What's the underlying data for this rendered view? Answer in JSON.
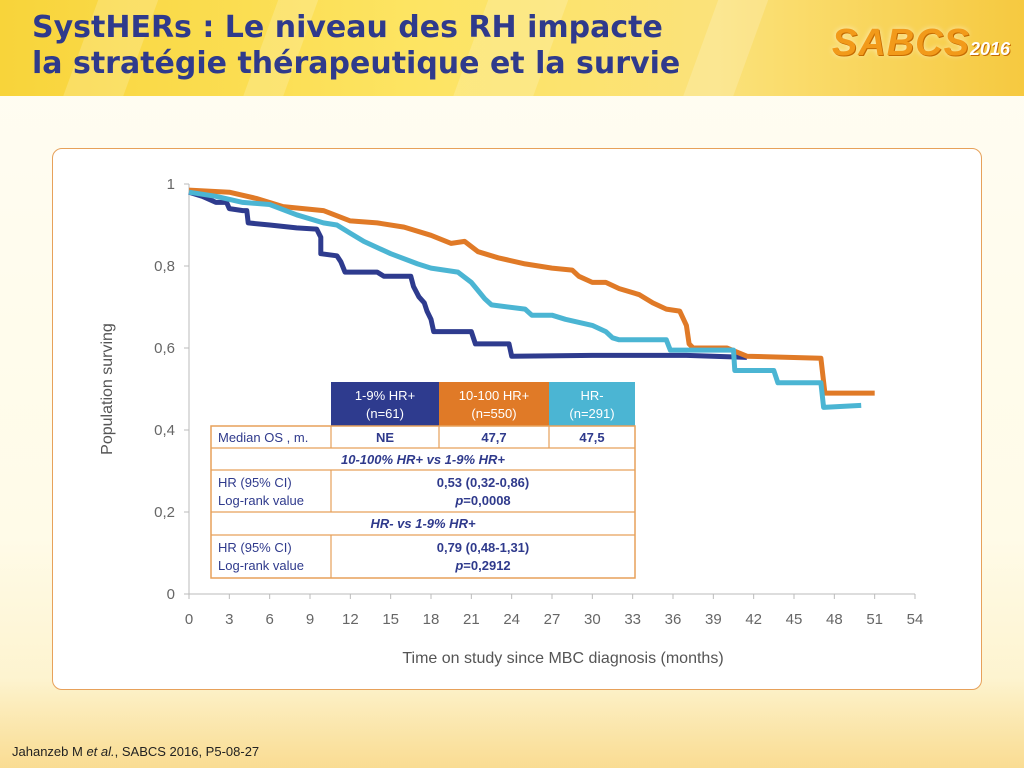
{
  "header": {
    "title_line1": "SystHERs : Le niveau des RH impacte",
    "title_line2": "la stratégie thérapeutique et la survie",
    "logo_text": "SABCS",
    "logo_year": "2016"
  },
  "citation": {
    "author": "Jahanzeb M ",
    "etal": "et al.",
    "rest": ", SABCS 2016, P5-08-27"
  },
  "colors": {
    "hr_1_9": "#2e3b8e",
    "hr_10_100": "#e07a27",
    "hr_neg": "#4bb5d3",
    "title": "#2f3a8c"
  },
  "chart_data": {
    "type": "line",
    "xlabel": "Time on study since MBC diagnosis (months)",
    "ylabel": "Population surving",
    "x_ticks": [
      "0",
      "3",
      "6",
      "9",
      "12",
      "15",
      "18",
      "21",
      "24",
      "27",
      "30",
      "33",
      "36",
      "39",
      "42",
      "45",
      "48",
      "51",
      "54"
    ],
    "y_ticks": [
      "0",
      "0,2",
      "0,4",
      "0,6",
      "0,8",
      "1"
    ],
    "xlim": [
      0,
      54
    ],
    "ylim": [
      0,
      1
    ],
    "grid": false,
    "series": [
      {
        "name": "1-9% HR+",
        "color": "#2e3b8e",
        "points": [
          [
            0,
            0.98
          ],
          [
            1,
            0.97
          ],
          [
            2,
            0.955
          ],
          [
            2.8,
            0.955
          ],
          [
            3,
            0.94
          ],
          [
            4,
            0.935
          ],
          [
            4.3,
            0.935
          ],
          [
            4.4,
            0.905
          ],
          [
            6,
            0.9
          ],
          [
            8,
            0.893
          ],
          [
            9.5,
            0.89
          ],
          [
            9.8,
            0.87
          ],
          [
            9.8,
            0.83
          ],
          [
            11,
            0.825
          ],
          [
            11.3,
            0.81
          ],
          [
            11.6,
            0.785
          ],
          [
            14,
            0.785
          ],
          [
            14.5,
            0.775
          ],
          [
            16.5,
            0.775
          ],
          [
            16.7,
            0.75
          ],
          [
            17.1,
            0.725
          ],
          [
            17.5,
            0.71
          ],
          [
            17.7,
            0.69
          ],
          [
            18,
            0.67
          ],
          [
            18.2,
            0.64
          ],
          [
            21,
            0.64
          ],
          [
            21.3,
            0.61
          ],
          [
            23.8,
            0.61
          ],
          [
            24,
            0.58
          ],
          [
            30,
            0.582
          ],
          [
            37,
            0.582
          ],
          [
            41.5,
            0.577
          ]
        ]
      },
      {
        "name": "10-100% HR+",
        "color": "#e07a27",
        "points": [
          [
            0,
            0.985
          ],
          [
            3,
            0.98
          ],
          [
            5,
            0.965
          ],
          [
            7,
            0.945
          ],
          [
            10,
            0.935
          ],
          [
            12,
            0.91
          ],
          [
            14,
            0.905
          ],
          [
            16,
            0.895
          ],
          [
            18,
            0.875
          ],
          [
            19.5,
            0.855
          ],
          [
            20.5,
            0.86
          ],
          [
            21.5,
            0.835
          ],
          [
            23,
            0.82
          ],
          [
            25,
            0.805
          ],
          [
            27,
            0.795
          ],
          [
            28.5,
            0.79
          ],
          [
            29,
            0.775
          ],
          [
            30,
            0.76
          ],
          [
            31,
            0.76
          ],
          [
            32,
            0.745
          ],
          [
            33.5,
            0.73
          ],
          [
            34.5,
            0.71
          ],
          [
            35.5,
            0.695
          ],
          [
            36.5,
            0.69
          ],
          [
            37,
            0.655
          ],
          [
            37.2,
            0.61
          ],
          [
            37.5,
            0.6
          ],
          [
            40,
            0.6
          ],
          [
            41.5,
            0.58
          ],
          [
            47,
            0.575
          ],
          [
            47.3,
            0.49
          ],
          [
            51,
            0.49
          ]
        ]
      },
      {
        "name": "HR-",
        "color": "#4bb5d3",
        "points": [
          [
            0,
            0.98
          ],
          [
            2,
            0.97
          ],
          [
            4,
            0.955
          ],
          [
            6,
            0.95
          ],
          [
            8,
            0.925
          ],
          [
            10,
            0.905
          ],
          [
            11,
            0.9
          ],
          [
            12,
            0.88
          ],
          [
            13,
            0.86
          ],
          [
            15,
            0.83
          ],
          [
            17,
            0.805
          ],
          [
            18,
            0.795
          ],
          [
            20,
            0.785
          ],
          [
            21,
            0.76
          ],
          [
            21.5,
            0.74
          ],
          [
            22,
            0.72
          ],
          [
            22.5,
            0.705
          ],
          [
            25,
            0.695
          ],
          [
            25.5,
            0.68
          ],
          [
            27,
            0.68
          ],
          [
            28,
            0.67
          ],
          [
            30,
            0.655
          ],
          [
            31,
            0.64
          ],
          [
            31.5,
            0.625
          ],
          [
            32,
            0.62
          ],
          [
            35.5,
            0.62
          ],
          [
            35.8,
            0.595
          ],
          [
            40.5,
            0.595
          ],
          [
            40.6,
            0.545
          ],
          [
            43.5,
            0.545
          ],
          [
            43.8,
            0.515
          ],
          [
            47,
            0.515
          ],
          [
            47.2,
            0.455
          ],
          [
            50,
            0.46
          ]
        ]
      }
    ],
    "table": {
      "groups": [
        {
          "label": "1-9% HR+",
          "n": "(n=61)",
          "color": "#2e3b8e"
        },
        {
          "label": "10-100 HR+",
          "n": "(n=550)",
          "color": "#e07a27"
        },
        {
          "label": "HR-",
          "n": "(n=291)",
          "color": "#4bb5d3"
        }
      ],
      "median_label": "Median OS , m.",
      "medians": [
        "NE",
        "47,7",
        "47,5"
      ],
      "comp1_title": "10-100% HR+ vs 1-9% HR+",
      "comp1_hr_label": "HR (95% CI)",
      "comp1_lr_label": "Log-rank value",
      "comp1_hr": "0,53 (0,32-0,86)",
      "comp1_p_prefix": "p",
      "comp1_p": "=0,0008",
      "comp2_title": "HR- vs 1-9% HR+",
      "comp2_hr_label": "HR (95% CI)",
      "comp2_lr_label": "Log-rank value",
      "comp2_hr": "0,79 (0,48-1,31)",
      "comp2_p_prefix": "p",
      "comp2_p": "=0,2912"
    }
  }
}
